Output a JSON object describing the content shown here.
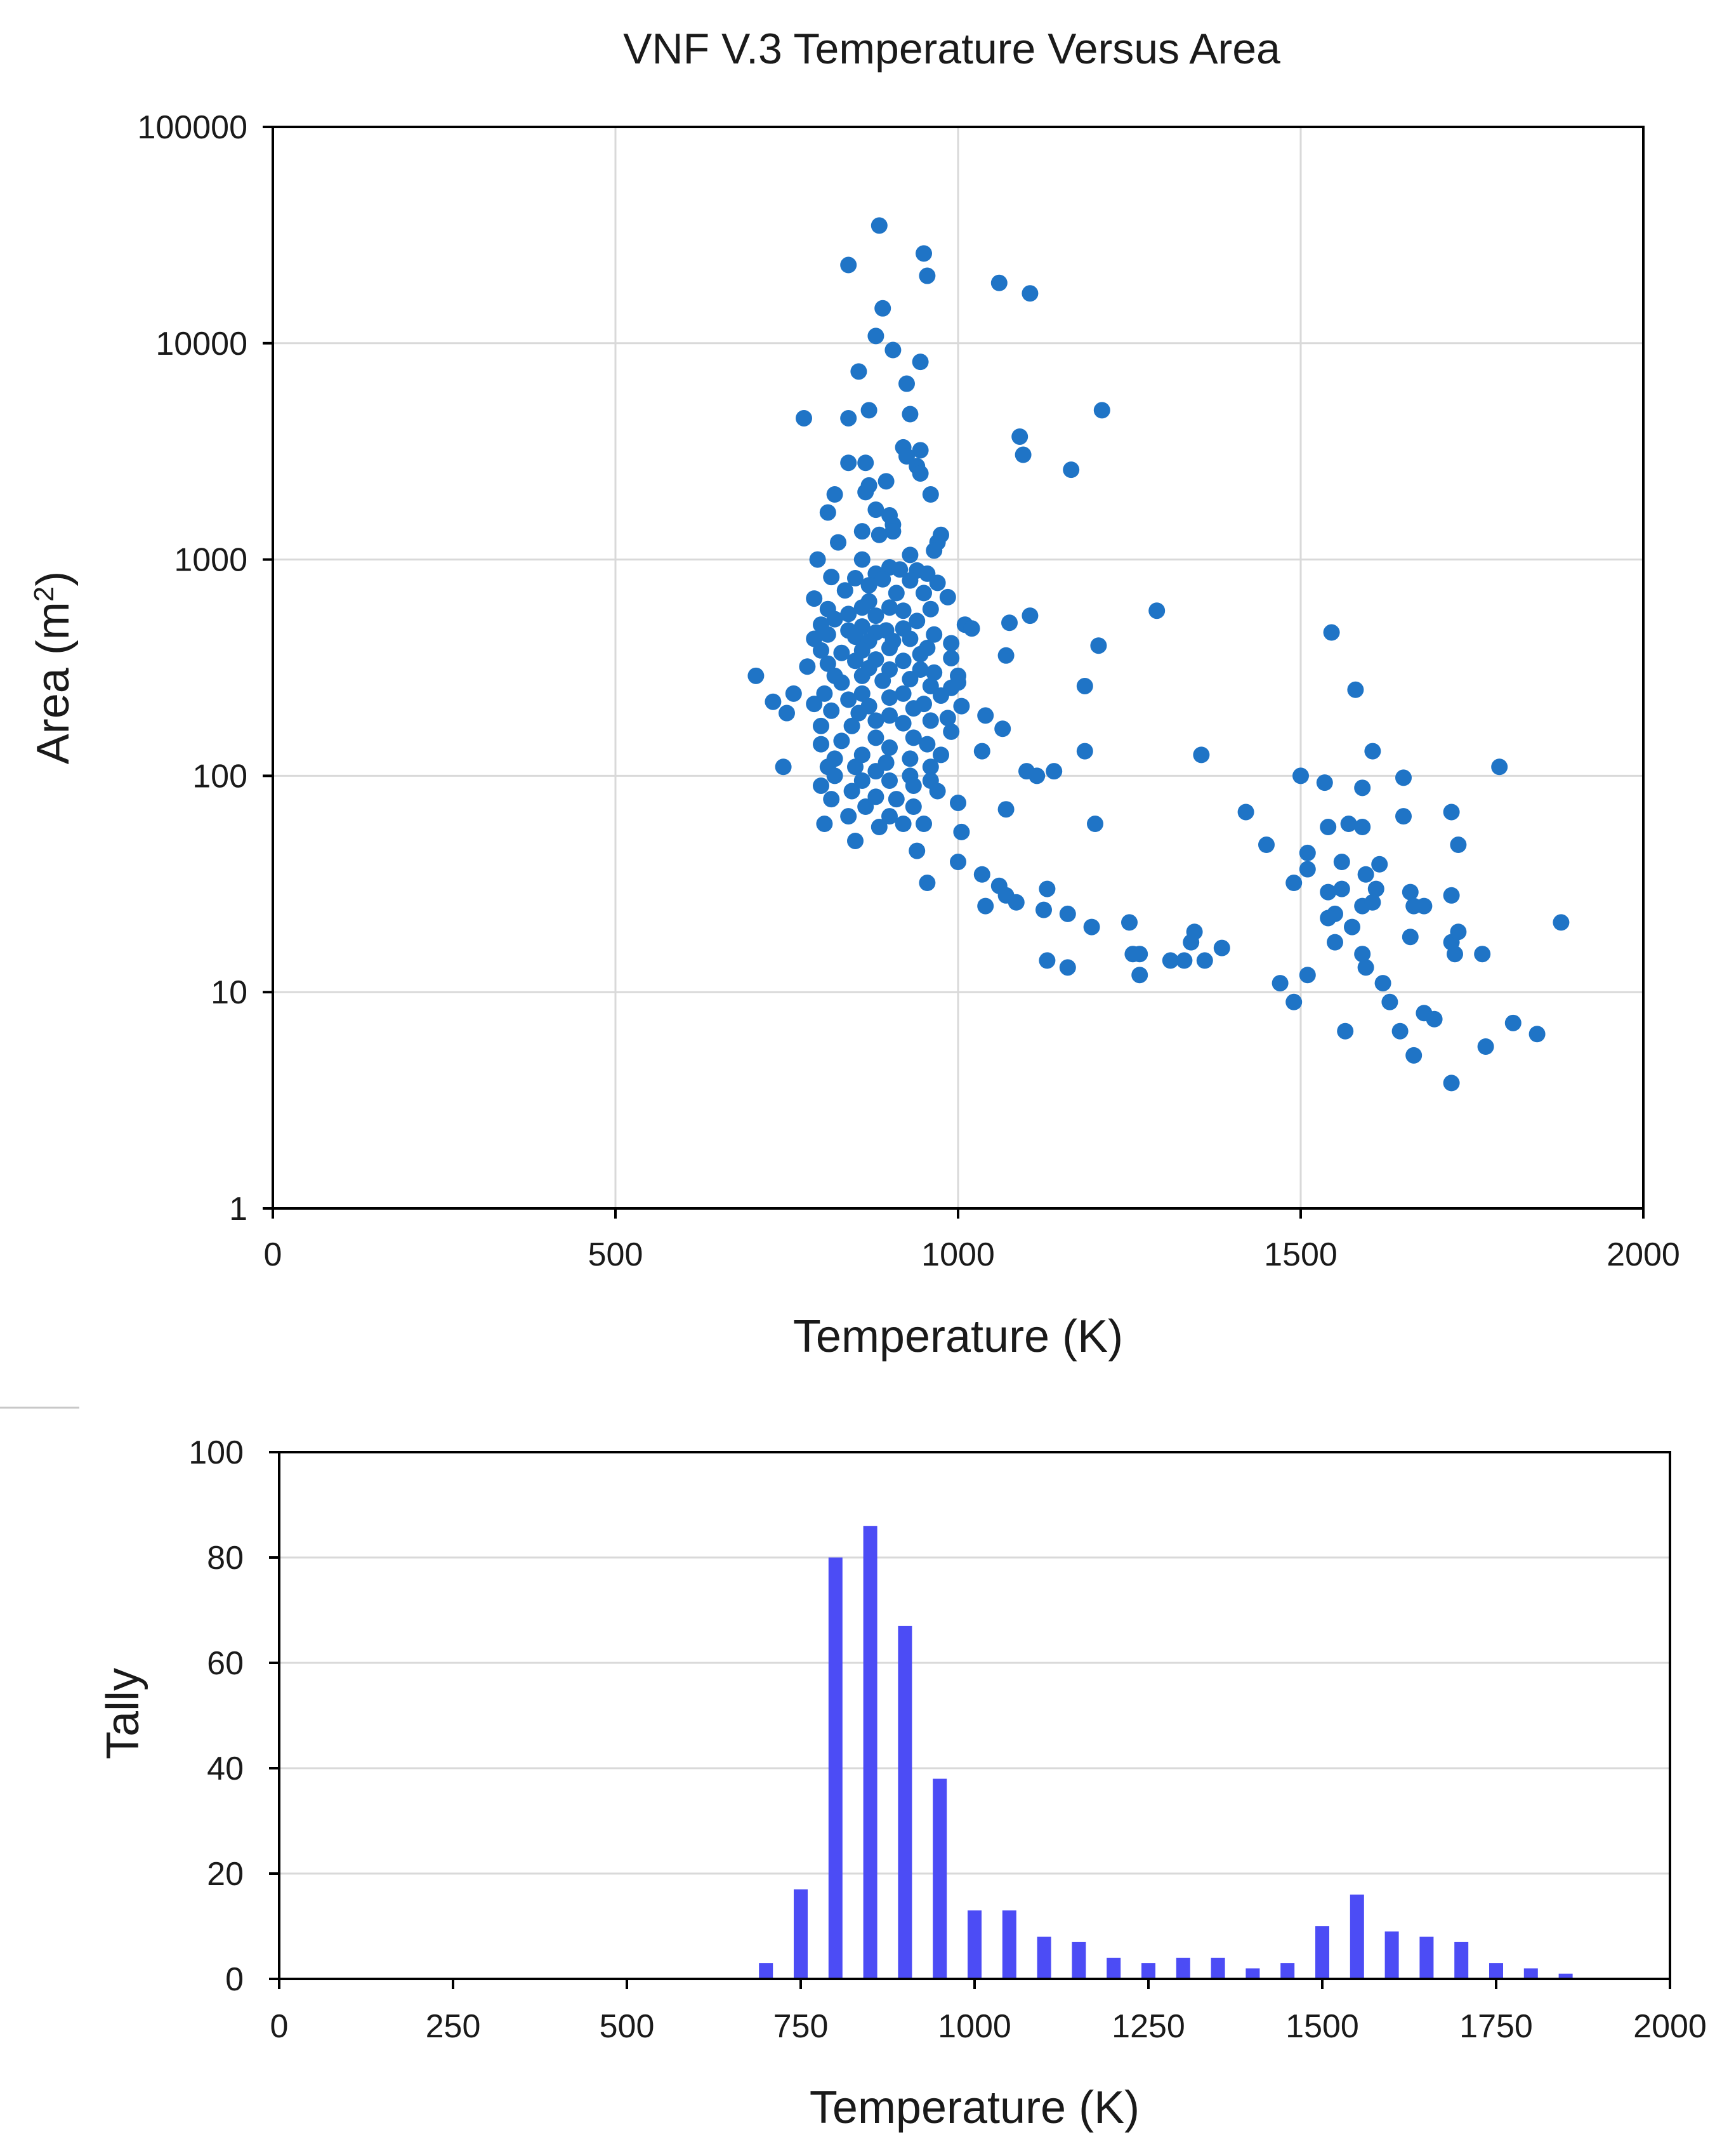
{
  "chart_data": [
    {
      "type": "scatter",
      "title": "VNF V.3 Temperature Versus Area",
      "xlabel": "Temperature (K)",
      "ylabel_main": "Area (m",
      "ylabel_sup": "2",
      "ylabel_close": ")",
      "xlim": [
        0,
        2000
      ],
      "ylim": [
        1,
        100000
      ],
      "yscale": "log",
      "grid": true,
      "x_ticks": [
        {
          "value": 0,
          "label": "0"
        },
        {
          "value": 500,
          "label": "500"
        },
        {
          "value": 1000,
          "label": "1000"
        },
        {
          "value": 1500,
          "label": "1500"
        },
        {
          "value": 2000,
          "label": "2000"
        }
      ],
      "y_ticks": [
        {
          "value": 1,
          "label": "1"
        },
        {
          "value": 10,
          "label": "10"
        },
        {
          "value": 100,
          "label": "100"
        },
        {
          "value": 1000,
          "label": "1000"
        },
        {
          "value": 10000,
          "label": "10000"
        },
        {
          "value": 100000,
          "label": "100000"
        }
      ],
      "color": "#1f74c6",
      "points": [
        [
          885,
          35000
        ],
        [
          950,
          26000
        ],
        [
          840,
          23000
        ],
        [
          955,
          20500
        ],
        [
          1060,
          19000
        ],
        [
          1105,
          17000
        ],
        [
          890,
          14500
        ],
        [
          880,
          10800
        ],
        [
          905,
          9300
        ],
        [
          945,
          8200
        ],
        [
          855,
          7400
        ],
        [
          925,
          6500
        ],
        [
          1210,
          4900
        ],
        [
          870,
          4900
        ],
        [
          930,
          4700
        ],
        [
          775,
          4500
        ],
        [
          840,
          4500
        ],
        [
          1090,
          3700
        ],
        [
          920,
          3300
        ],
        [
          945,
          3200
        ],
        [
          1095,
          3050
        ],
        [
          925,
          3000
        ],
        [
          840,
          2800
        ],
        [
          865,
          2800
        ],
        [
          940,
          2700
        ],
        [
          945,
          2500
        ],
        [
          1165,
          2600
        ],
        [
          895,
          2300
        ],
        [
          870,
          2200
        ],
        [
          865,
          2050
        ],
        [
          960,
          2000
        ],
        [
          820,
          2000
        ],
        [
          880,
          1700
        ],
        [
          810,
          1650
        ],
        [
          900,
          1600
        ],
        [
          905,
          1450
        ],
        [
          860,
          1350
        ],
        [
          975,
          1300
        ],
        [
          905,
          1350
        ],
        [
          885,
          1300
        ],
        [
          970,
          1200
        ],
        [
          825,
          1200
        ],
        [
          965,
          1100
        ],
        [
          930,
          1050
        ],
        [
          860,
          1000
        ],
        [
          795,
          1000
        ],
        [
          900,
          920
        ],
        [
          915,
          900
        ],
        [
          940,
          890
        ],
        [
          880,
          860
        ],
        [
          955,
          860
        ],
        [
          815,
          830
        ],
        [
          850,
          820
        ],
        [
          890,
          810
        ],
        [
          930,
          800
        ],
        [
          970,
          780
        ],
        [
          870,
          760
        ],
        [
          835,
          720
        ],
        [
          910,
          700
        ],
        [
          950,
          700
        ],
        [
          985,
          670
        ],
        [
          790,
          660
        ],
        [
          870,
          640
        ],
        [
          1105,
          550
        ],
        [
          1290,
          580
        ],
        [
          920,
          580
        ],
        [
          860,
          600
        ],
        [
          900,
          600
        ],
        [
          960,
          590
        ],
        [
          810,
          590
        ],
        [
          840,
          560
        ],
        [
          880,
          550
        ],
        [
          820,
          530
        ],
        [
          940,
          520
        ],
        [
          800,
          500
        ],
        [
          1075,
          510
        ],
        [
          1010,
          500
        ],
        [
          1020,
          480
        ],
        [
          920,
          480
        ],
        [
          860,
          490
        ],
        [
          895,
          470
        ],
        [
          840,
          470
        ],
        [
          880,
          460
        ],
        [
          965,
          450
        ],
        [
          850,
          440
        ],
        [
          810,
          450
        ],
        [
          790,
          430
        ],
        [
          930,
          430
        ],
        [
          870,
          420
        ],
        [
          905,
          420
        ],
        [
          990,
          410
        ],
        [
          1205,
          400
        ],
        [
          1545,
          460
        ],
        [
          955,
          390
        ],
        [
          900,
          390
        ],
        [
          860,
          380
        ],
        [
          830,
          370
        ],
        [
          945,
          365
        ],
        [
          800,
          380
        ],
        [
          1070,
          360
        ],
        [
          990,
          350
        ],
        [
          880,
          345
        ],
        [
          920,
          340
        ],
        [
          850,
          340
        ],
        [
          810,
          330
        ],
        [
          780,
          320
        ],
        [
          870,
          315
        ],
        [
          945,
          310
        ],
        [
          900,
          310
        ],
        [
          965,
          300
        ],
        [
          1000,
          290
        ],
        [
          705,
          290
        ],
        [
          820,
          290
        ],
        [
          860,
          290
        ],
        [
          930,
          280
        ],
        [
          890,
          275
        ],
        [
          830,
          270
        ],
        [
          960,
          260
        ],
        [
          990,
          255
        ],
        [
          1000,
          270
        ],
        [
          1185,
          260
        ],
        [
          1580,
          250
        ],
        [
          805,
          240
        ],
        [
          860,
          240
        ],
        [
          920,
          240
        ],
        [
          760,
          240
        ],
        [
          975,
          235
        ],
        [
          900,
          230
        ],
        [
          840,
          225
        ],
        [
          730,
          220
        ],
        [
          790,
          215
        ],
        [
          950,
          215
        ],
        [
          1005,
          210
        ],
        [
          870,
          210
        ],
        [
          935,
          205
        ],
        [
          815,
          200
        ],
        [
          855,
          195
        ],
        [
          900,
          190
        ],
        [
          750,
          195
        ],
        [
          1040,
          190
        ],
        [
          985,
          185
        ],
        [
          960,
          180
        ],
        [
          880,
          180
        ],
        [
          920,
          175
        ],
        [
          845,
          170
        ],
        [
          800,
          170
        ],
        [
          1065,
          165
        ],
        [
          990,
          160
        ],
        [
          935,
          150
        ],
        [
          880,
          150
        ],
        [
          830,
          145
        ],
        [
          800,
          140
        ],
        [
          955,
          140
        ],
        [
          900,
          135
        ],
        [
          1035,
          130
        ],
        [
          1185,
          130
        ],
        [
          1605,
          130
        ],
        [
          975,
          125
        ],
        [
          860,
          125
        ],
        [
          820,
          120
        ],
        [
          1355,
          125
        ],
        [
          930,
          120
        ],
        [
          895,
          115
        ],
        [
          850,
          110
        ],
        [
          810,
          110
        ],
        [
          745,
          110
        ],
        [
          960,
          110
        ],
        [
          1790,
          110
        ],
        [
          1100,
          105
        ],
        [
          1140,
          105
        ],
        [
          880,
          105
        ],
        [
          930,
          100
        ],
        [
          1115,
          100
        ],
        [
          1500,
          100
        ],
        [
          820,
          100
        ],
        [
          960,
          95
        ],
        [
          860,
          95
        ],
        [
          900,
          95
        ],
        [
          1535,
          93
        ],
        [
          1650,
          98
        ],
        [
          800,
          90
        ],
        [
          935,
          90
        ],
        [
          970,
          85
        ],
        [
          845,
          85
        ],
        [
          1590,
          88
        ],
        [
          880,
          80
        ],
        [
          910,
          78
        ],
        [
          815,
          78
        ],
        [
          1000,
          75
        ],
        [
          935,
          72
        ],
        [
          865,
          72
        ],
        [
          1070,
          70
        ],
        [
          1420,
          68
        ],
        [
          1720,
          68
        ],
        [
          1650,
          65
        ],
        [
          840,
          65
        ],
        [
          900,
          65
        ],
        [
          1570,
          60
        ],
        [
          950,
          60
        ],
        [
          1200,
          60
        ],
        [
          1540,
          58
        ],
        [
          1590,
          58
        ],
        [
          805,
          60
        ],
        [
          920,
          60
        ],
        [
          885,
          58
        ],
        [
          1005,
          55
        ],
        [
          850,
          50
        ],
        [
          1450,
          48
        ],
        [
          1730,
          48
        ],
        [
          1510,
          44
        ],
        [
          940,
          45
        ],
        [
          1000,
          40
        ],
        [
          1560,
          40
        ],
        [
          1615,
          39
        ],
        [
          1510,
          37
        ],
        [
          1595,
          35
        ],
        [
          1035,
          35
        ],
        [
          955,
          32
        ],
        [
          1490,
          32
        ],
        [
          1060,
          31
        ],
        [
          1130,
          30
        ],
        [
          1070,
          28
        ],
        [
          1560,
          30
        ],
        [
          1610,
          30
        ],
        [
          1540,
          29
        ],
        [
          1660,
          29
        ],
        [
          1720,
          28
        ],
        [
          1085,
          26
        ],
        [
          1040,
          25
        ],
        [
          1590,
          25
        ],
        [
          1605,
          26
        ],
        [
          1665,
          25
        ],
        [
          1680,
          25
        ],
        [
          1125,
          24
        ],
        [
          1160,
          23
        ],
        [
          1550,
          23
        ],
        [
          1540,
          22
        ],
        [
          1250,
          21
        ],
        [
          1195,
          20
        ],
        [
          1880,
          21
        ],
        [
          1575,
          20
        ],
        [
          1660,
          18
        ],
        [
          1720,
          17
        ],
        [
          1345,
          19
        ],
        [
          1340,
          17
        ],
        [
          1730,
          19
        ],
        [
          1550,
          17
        ],
        [
          1590,
          15
        ],
        [
          1385,
          16
        ],
        [
          1265,
          15
        ],
        [
          1130,
          14
        ],
        [
          1310,
          14
        ],
        [
          1360,
          14
        ],
        [
          1255,
          15
        ],
        [
          1330,
          14
        ],
        [
          1765,
          15
        ],
        [
          1160,
          13
        ],
        [
          1595,
          13
        ],
        [
          1620,
          11
        ],
        [
          1725,
          15
        ],
        [
          1265,
          12
        ],
        [
          1510,
          12
        ],
        [
          1470,
          11
        ],
        [
          1630,
          9
        ],
        [
          1490,
          9
        ],
        [
          1680,
          8
        ],
        [
          1695,
          7.5
        ],
        [
          1810,
          7.2
        ],
        [
          1565,
          6.6
        ],
        [
          1645,
          6.6
        ],
        [
          1845,
          6.4
        ],
        [
          1770,
          5.6
        ],
        [
          1665,
          5.1
        ],
        [
          1720,
          3.8
        ]
      ]
    },
    {
      "type": "bar",
      "xlabel": "Temperature (K)",
      "ylabel": "Tally",
      "xlim": [
        0,
        2000
      ],
      "ylim": [
        0,
        100
      ],
      "grid": true,
      "x_ticks": [
        {
          "value": 0,
          "label": "0"
        },
        {
          "value": 250,
          "label": "250"
        },
        {
          "value": 500,
          "label": "500"
        },
        {
          "value": 750,
          "label": "750"
        },
        {
          "value": 1000,
          "label": "1000"
        },
        {
          "value": 1250,
          "label": "1250"
        },
        {
          "value": 1500,
          "label": "1500"
        },
        {
          "value": 1750,
          "label": "1750"
        },
        {
          "value": 2000,
          "label": "2000"
        }
      ],
      "y_ticks": [
        {
          "value": 0,
          "label": "0"
        },
        {
          "value": 20,
          "label": "20"
        },
        {
          "value": 40,
          "label": "40"
        },
        {
          "value": 60,
          "label": "60"
        },
        {
          "value": 80,
          "label": "80"
        },
        {
          "value": 100,
          "label": "100"
        }
      ],
      "color": "#4c4cf5",
      "categories": [
        700,
        750,
        800,
        850,
        900,
        950,
        1000,
        1050,
        1100,
        1150,
        1200,
        1250,
        1300,
        1350,
        1400,
        1450,
        1500,
        1550,
        1600,
        1650,
        1700,
        1750,
        1800,
        1850
      ],
      "values": [
        3,
        17,
        80,
        86,
        67,
        38,
        13,
        13,
        8,
        7,
        4,
        3,
        4,
        4,
        2,
        3,
        10,
        16,
        9,
        8,
        7,
        3,
        2,
        1
      ]
    }
  ]
}
